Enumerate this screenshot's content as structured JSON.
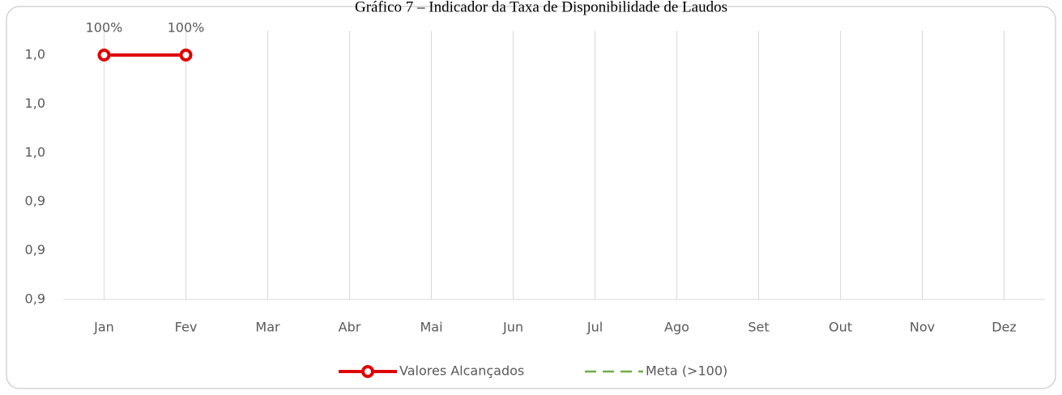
{
  "chart_data": {
    "type": "line",
    "title": "Gráfico 7 – Indicador da Taxa de Disponibilidade de Laudos",
    "categories": [
      "Jan",
      "Fev",
      "Mar",
      "Abr",
      "Mai",
      "Jun",
      "Jul",
      "Ago",
      "Set",
      "Out",
      "Nov",
      "Dez"
    ],
    "series": [
      {
        "name": "Valores Alcançados",
        "color": "#e00000",
        "values": [
          1,
          1,
          null,
          null,
          null,
          null,
          null,
          null,
          null,
          null,
          null,
          null
        ],
        "value_labels": [
          "100%",
          "100%",
          null,
          null,
          null,
          null,
          null,
          null,
          null,
          null,
          null,
          null
        ]
      },
      {
        "name": "Meta (>100)",
        "color": "#70ad47",
        "values": [
          null,
          null,
          null,
          null,
          null,
          null,
          null,
          null,
          null,
          null,
          null,
          null
        ]
      }
    ],
    "ylim": [
      0.9,
      1.0
    ],
    "yticks": [
      {
        "value": 0.9,
        "label": "0,9"
      },
      {
        "value": 0.92,
        "label": "0,9"
      },
      {
        "value": 0.94,
        "label": "0,9"
      },
      {
        "value": 0.96,
        "label": "1,0"
      },
      {
        "value": 0.98,
        "label": "1,0"
      },
      {
        "value": 1.0,
        "label": "1,0"
      }
    ],
    "grid": true,
    "legend": "bottom"
  }
}
